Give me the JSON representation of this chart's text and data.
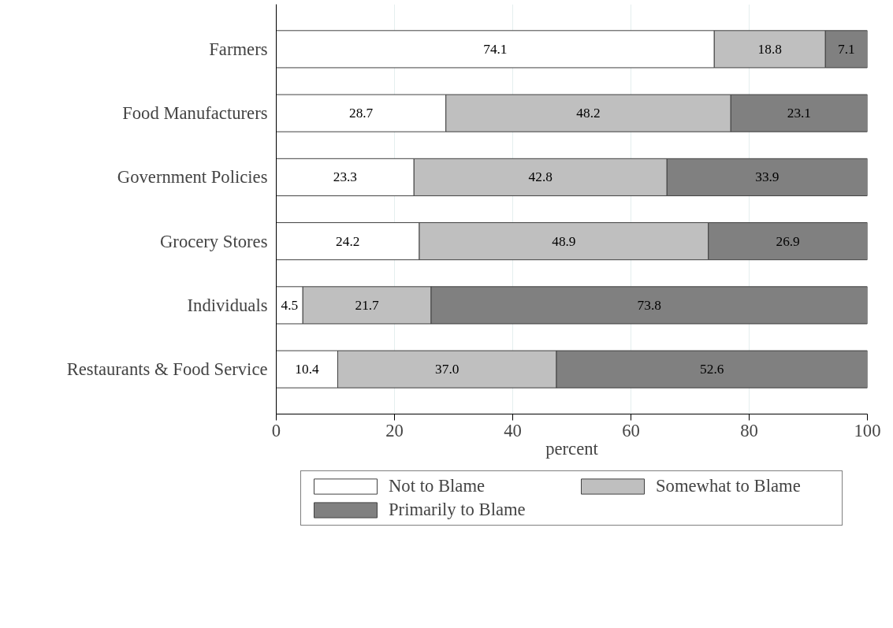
{
  "chart_data": {
    "type": "bar",
    "orientation": "horizontal",
    "stacked": true,
    "xlabel": "percent",
    "categories": [
      "Farmers",
      "Food Manufacturers",
      "Government Policies",
      "Grocery Stores",
      "Individuals",
      "Restaurants & Food Service"
    ],
    "series": [
      {
        "name": "Not to Blame",
        "color": "#ffffff",
        "values": [
          74.1,
          28.7,
          23.3,
          24.2,
          4.5,
          10.4
        ],
        "value_labels": [
          "74.1",
          "28.7",
          "23.3",
          "24.2",
          "4.5",
          "10.4"
        ]
      },
      {
        "name": "Somewhat to Blame",
        "color": "#bfbfbf",
        "values": [
          18.8,
          48.2,
          42.8,
          48.9,
          21.7,
          37.0
        ],
        "value_labels": [
          "18.8",
          "48.2",
          "42.8",
          "48.9",
          "21.7",
          "37.0"
        ]
      },
      {
        "name": "Primarily to Blame",
        "color": "#808080",
        "values": [
          7.1,
          23.1,
          33.9,
          26.9,
          73.8,
          52.6
        ],
        "value_labels": [
          "7.1",
          "23.1",
          "33.9",
          "26.9",
          "73.8",
          "52.6"
        ]
      }
    ],
    "xlim": [
      0,
      100
    ],
    "xticks": [
      0,
      20,
      40,
      60,
      80,
      100
    ],
    "grid": "x",
    "legend": "bottom"
  }
}
